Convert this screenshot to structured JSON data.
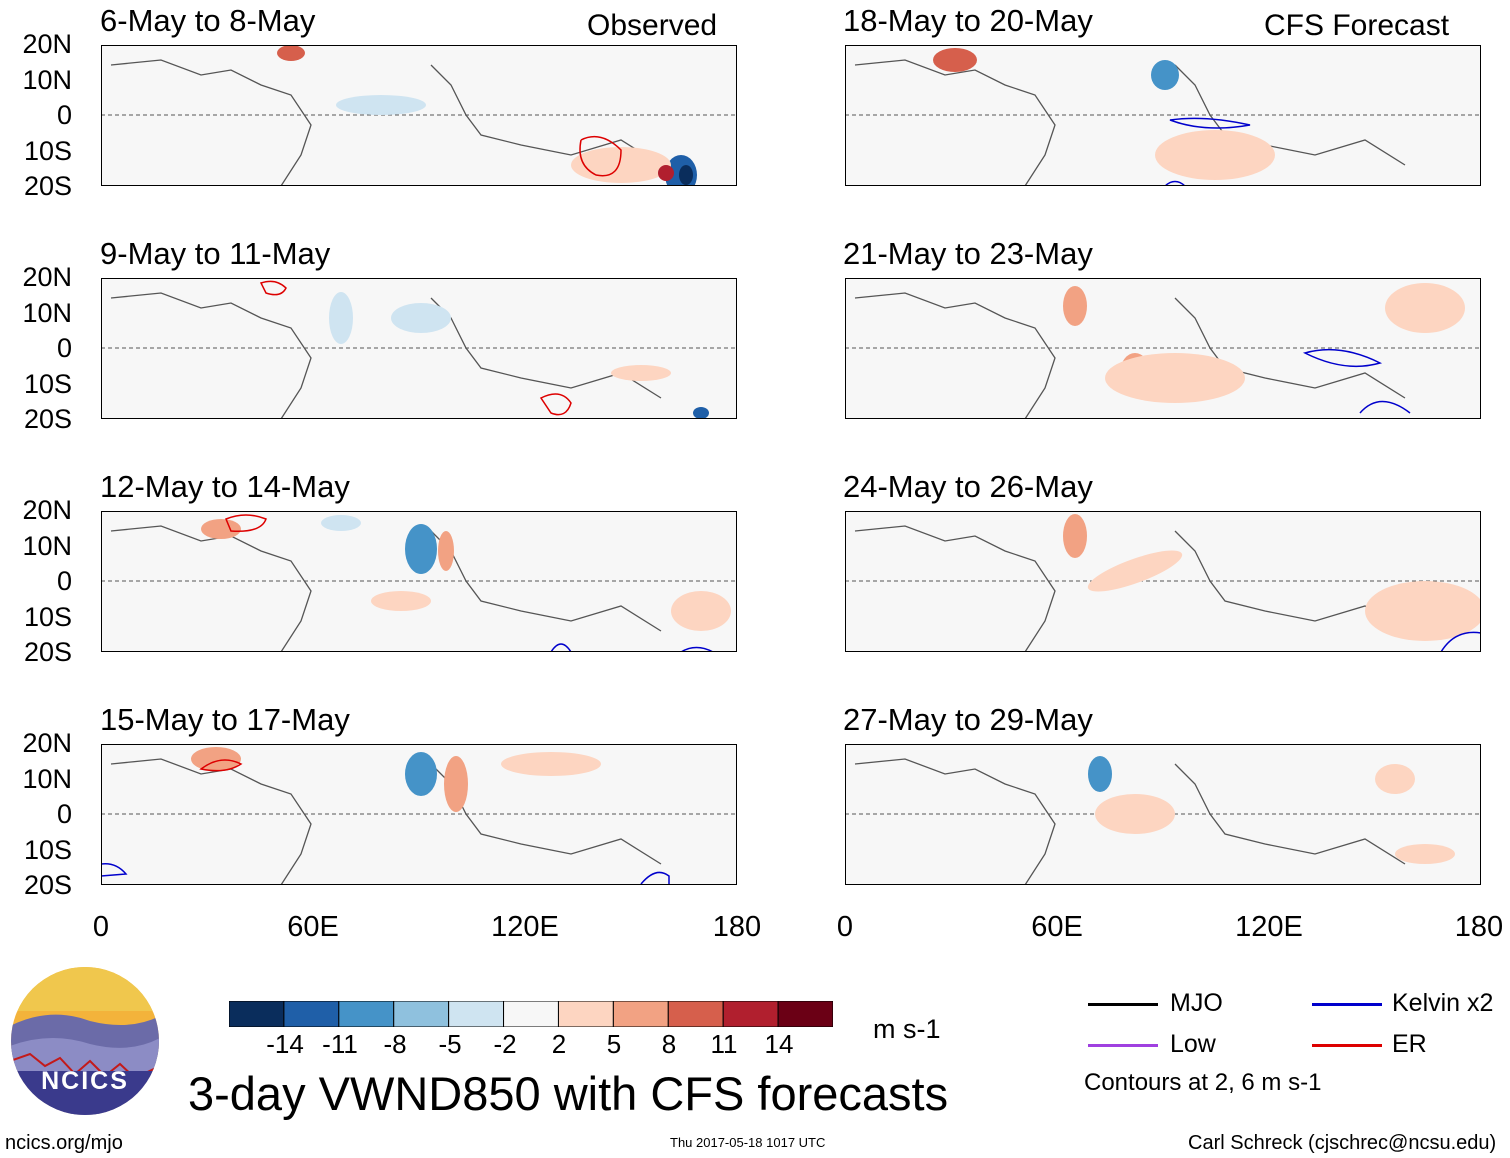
{
  "figure": {
    "main_title": "3-day VWND850 with CFS forecasts",
    "site": "ncics.org/mjo",
    "timestamp": "Thu 2017-05-18 1017 UTC",
    "author": "Carl Schreck (cjschrec@ncsu.edu)",
    "logo_text": "NCICS",
    "observed_label": "Observed",
    "forecast_label": "CFS Forecast",
    "units": "m s-1",
    "contours_note": "Contours at 2, 6 m s-1"
  },
  "legend": [
    {
      "label": "MJO",
      "color": "#000000"
    },
    {
      "label": "Kelvin x2",
      "color": "#0000cc"
    },
    {
      "label": "Low",
      "color": "#a040e0"
    },
    {
      "label": "ER",
      "color": "#dd0000"
    }
  ],
  "chart_data": {
    "type": "heatmap",
    "variable": "850-hPa meridional wind anomaly (3-day mean)",
    "lat_ticks": [
      "20N",
      "10N",
      "0",
      "10S",
      "20S"
    ],
    "lon_ticks": [
      "0",
      "60E",
      "120E",
      "180"
    ],
    "lat_range": [
      -20,
      20
    ],
    "lon_range": [
      0,
      180
    ],
    "colorbar": {
      "ticks": [
        "-14",
        "-11",
        "-8",
        "-5",
        "-2",
        "2",
        "5",
        "8",
        "11",
        "14"
      ],
      "colors": [
        "#0a2d5c",
        "#1f5fa8",
        "#4593c8",
        "#8fc1de",
        "#cfe4f1",
        "#f7f7f7",
        "#fdd5c1",
        "#f2a283",
        "#d65f4c",
        "#b11f2e",
        "#6b0015"
      ]
    },
    "panels": [
      {
        "title": "6-May to 8-May",
        "source": "observed"
      },
      {
        "title": "9-May to 11-May",
        "source": "observed"
      },
      {
        "title": "12-May to 14-May",
        "source": "observed"
      },
      {
        "title": "15-May to 17-May",
        "source": "observed"
      },
      {
        "title": "18-May to 20-May",
        "source": "forecast"
      },
      {
        "title": "21-May to 23-May",
        "source": "forecast"
      },
      {
        "title": "24-May to 26-May",
        "source": "forecast"
      },
      {
        "title": "27-May to 29-May",
        "source": "forecast"
      }
    ]
  }
}
